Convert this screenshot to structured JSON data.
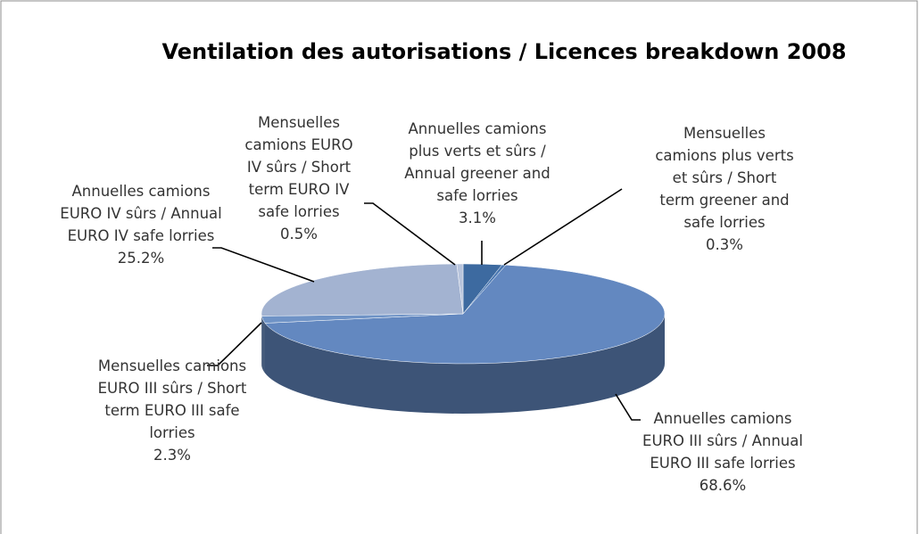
{
  "chart_data": {
    "type": "pie",
    "title": "Ventilation des autorisations / Licences breakdown 2008",
    "categories": [
      "Annuelles camions plus verts et sûrs / Annual greener and safe lorries",
      "Mensuelles camions plus verts et sûrs / Short term greener and safe lorries",
      "Annuelles camions EURO III sûrs / Annual EURO III safe lorries",
      "Mensuelles camions EURO III sûrs / Short term EURO III safe lorries",
      "Annuelles camions EURO IV sûrs / Annual EURO IV safe lorries",
      "Mensuelles camions EURO IV sûrs / Short term EURO IV safe lorries"
    ],
    "values": [
      3.1,
      0.3,
      68.6,
      2.3,
      25.2,
      0.5
    ],
    "value_labels": [
      "3.1%",
      "0.3%",
      "68.6%",
      "2.3%",
      "25.2%",
      "0.5%"
    ],
    "colors": [
      "#3d6aa0",
      "#4a78b2",
      "#6388c0",
      "#6f93c6",
      "#a3b3d1",
      "#b8c4dc"
    ]
  }
}
